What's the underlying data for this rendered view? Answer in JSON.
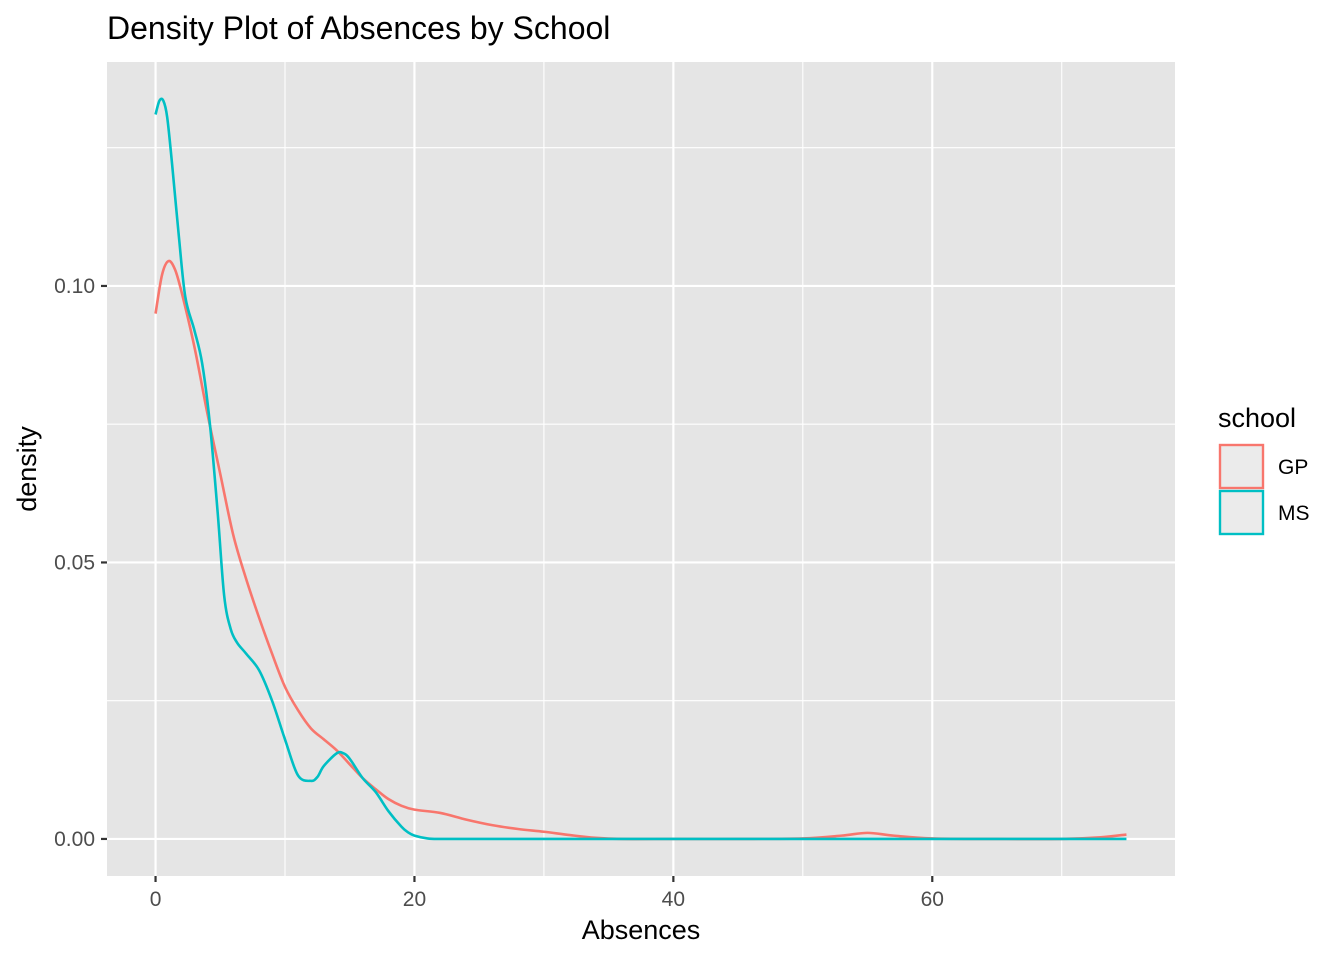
{
  "chart_data": {
    "type": "line",
    "title": "Density Plot of Absences by School",
    "xlabel": "Absences",
    "ylabel": "density",
    "xlim": [
      -3.75,
      78.75
    ],
    "ylim": [
      -0.0067,
      0.1405
    ],
    "x_ticks": [
      0,
      20,
      40,
      60
    ],
    "x_tick_labels": [
      "0",
      "20",
      "40",
      "60"
    ],
    "y_ticks": [
      0.0,
      0.05,
      0.1
    ],
    "y_tick_labels": [
      "0.00",
      "0.05",
      "0.10"
    ],
    "grid": true,
    "panel_background": "#e5e5e5",
    "legend": {
      "title": "school",
      "placement": "right"
    },
    "series": [
      {
        "name": "GP",
        "color": "#f8766d",
        "x": [
          0,
          0.5,
          1,
          1.5,
          2,
          3,
          4,
          5,
          6,
          7,
          8,
          9,
          10,
          11,
          12,
          13,
          14,
          15,
          16,
          17,
          18,
          19,
          20,
          22,
          24,
          26,
          28,
          30,
          32,
          34,
          36,
          40,
          45,
          50,
          53,
          55,
          57,
          60,
          65,
          70,
          73,
          75
        ],
        "y": [
          0.095,
          0.102,
          0.1045,
          0.103,
          0.099,
          0.089,
          0.077,
          0.066,
          0.055,
          0.047,
          0.04,
          0.0335,
          0.0275,
          0.0233,
          0.02,
          0.018,
          0.016,
          0.0135,
          0.011,
          0.009,
          0.0072,
          0.006,
          0.0053,
          0.0047,
          0.0035,
          0.0025,
          0.0018,
          0.0013,
          0.0007,
          0.0002,
          0.0,
          0.0,
          0.0,
          0.0001,
          0.0006,
          0.0011,
          0.0006,
          0.0001,
          0.0,
          0.0,
          0.0003,
          0.0008
        ]
      },
      {
        "name": "MS",
        "color": "#00bfc4",
        "x": [
          0,
          0.3,
          0.6,
          0.9,
          1.3,
          1.8,
          2.3,
          3,
          3.6,
          4.2,
          4.8,
          5.3,
          5.8,
          6.3,
          7,
          8,
          9,
          10,
          11,
          12,
          12.5,
          13,
          14,
          14.5,
          15,
          16,
          17,
          18,
          19,
          19.5,
          20,
          21,
          22,
          25,
          30,
          40,
          50,
          60,
          70,
          75
        ],
        "y": [
          0.131,
          0.1335,
          0.1335,
          0.1305,
          0.1215,
          0.109,
          0.098,
          0.092,
          0.086,
          0.075,
          0.059,
          0.044,
          0.038,
          0.0355,
          0.0335,
          0.0305,
          0.025,
          0.018,
          0.0115,
          0.0105,
          0.0112,
          0.0132,
          0.0155,
          0.0155,
          0.0145,
          0.011,
          0.0085,
          0.005,
          0.0022,
          0.0012,
          0.0006,
          0.0001,
          0.0,
          0.0,
          0.0,
          0.0,
          0.0,
          0.0,
          0.0,
          0.0
        ]
      }
    ]
  }
}
